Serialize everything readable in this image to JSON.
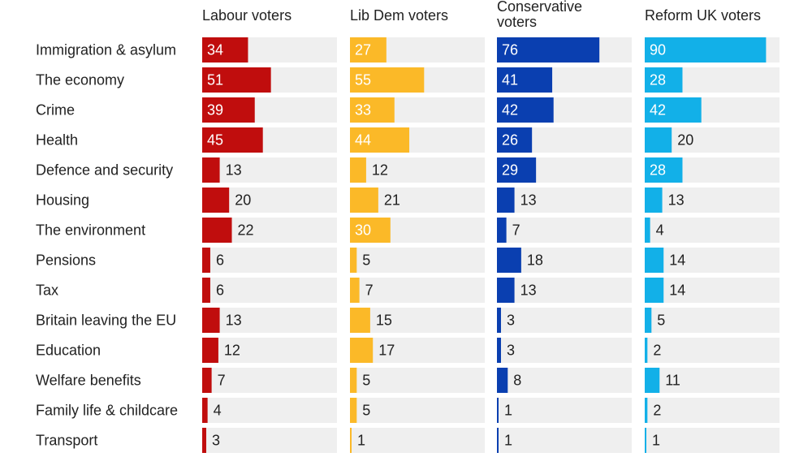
{
  "chart_data": {
    "type": "bar",
    "categories": [
      "Immigration & asylum",
      "The economy",
      "Crime",
      "Health",
      "Defence and security",
      "Housing",
      "The environment",
      "Pensions",
      "Tax",
      "Britain leaving the EU",
      "Education",
      "Welfare benefits",
      "Family life & childcare",
      "Transport"
    ],
    "xlim": [
      0,
      100
    ],
    "series": [
      {
        "name": "Labour voters",
        "color": "#c00d0d",
        "values": [
          34,
          51,
          39,
          45,
          13,
          20,
          22,
          6,
          6,
          13,
          12,
          7,
          4,
          3
        ]
      },
      {
        "name": "Lib Dem voters",
        "color": "#fbb928",
        "values": [
          27,
          55,
          33,
          44,
          12,
          21,
          30,
          5,
          7,
          15,
          17,
          5,
          5,
          1
        ]
      },
      {
        "name": "Conservative voters",
        "color": "#0a3fb0",
        "values": [
          76,
          41,
          42,
          26,
          29,
          13,
          7,
          18,
          13,
          3,
          3,
          8,
          1,
          1
        ]
      },
      {
        "name": "Reform UK voters",
        "color": "#12b0e8",
        "values": [
          90,
          28,
          42,
          20,
          28,
          13,
          4,
          14,
          14,
          5,
          2,
          11,
          2,
          1
        ]
      }
    ],
    "track_color": "#efefef",
    "label_inside_color": "#ffffff",
    "label_outside_color": "#222222"
  }
}
